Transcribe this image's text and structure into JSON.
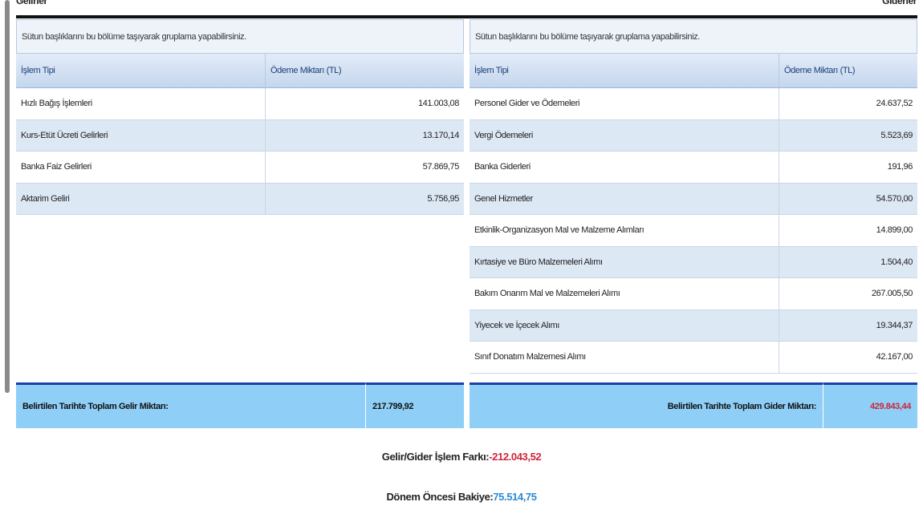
{
  "header": {
    "left_title": "Gelirler",
    "right_title": "Giderler"
  },
  "income_table": {
    "group_hint": "Sütun başlıklarını bu bölüme taşıyarak gruplama yapabilirsiniz.",
    "columns": [
      "İşlem Tipi",
      "Ödeme Miktarı (TL)"
    ],
    "rows": [
      [
        "Hızlı Bağış İşlemleri",
        "141.003,08"
      ],
      [
        "Kurs-Etüt Ücreti Gelirleri",
        "13.170,14"
      ],
      [
        "Banka Faiz Gelirleri",
        "57.869,75"
      ],
      [
        "Aktarim Geliri",
        "5.756,95"
      ]
    ],
    "total_label": "Belirtilen Tarihte Toplam Gelir Miktarı:",
    "total_value": "217.799,92"
  },
  "expense_table": {
    "group_hint": "Sütun başlıklarını bu bölüme taşıyarak gruplama yapabilirsiniz.",
    "columns": [
      "İşlem Tipi",
      "Ödeme Miktarı (TL)"
    ],
    "rows": [
      [
        "Personel Gider ve Ödemeleri",
        "24.637,52"
      ],
      [
        "Vergi Ödemeleri",
        "5.523,69"
      ],
      [
        "Banka Giderleri",
        "191,96"
      ],
      [
        "Genel Hizmetler",
        "54.570,00"
      ],
      [
        "Etkinlik-Organizasyon Mal ve Malzeme Alımları",
        "14.899,00"
      ],
      [
        "Kırtasiye ve Büro Malzemeleri Alımı",
        "1.504,40"
      ],
      [
        "Bakım Onarım Mal ve Malzemeleri Alımı",
        "267.005,50"
      ],
      [
        "Yiyecek ve İçecek Alımı",
        "19.344,37"
      ],
      [
        "Sınıf Donatım Malzemesi Alımı",
        "42.167,00"
      ]
    ],
    "total_label": "Belirtilen Tarihte Toplam Gider Miktarı:",
    "total_value": "429.843,44"
  },
  "summary": {
    "difference_label": "Gelir/Gider İşlem Farkı:",
    "difference_value": "-212.043,52",
    "balance_label": "Dönem Öncesi Bakiye:",
    "balance_value": "75.514,75"
  }
}
